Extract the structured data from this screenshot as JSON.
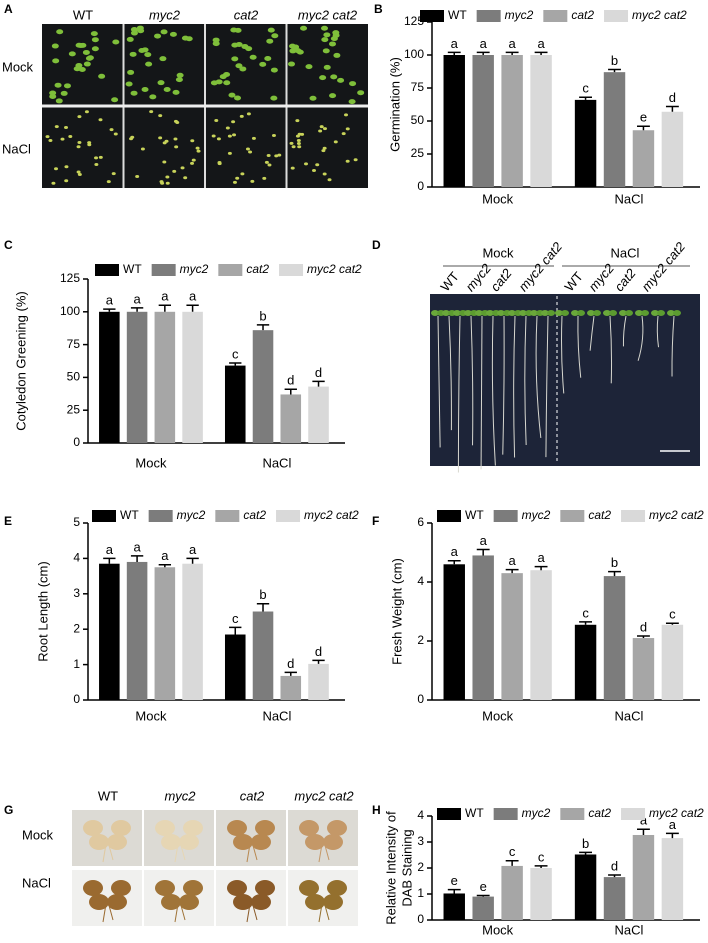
{
  "chart_data": [
    {
      "panel": "B",
      "type": "bar",
      "ylabel": "Germination (%)",
      "categories": [
        "Mock",
        "NaCl"
      ],
      "series": [
        {
          "name": "WT",
          "color": "#000000",
          "values": [
            100,
            66
          ],
          "errors": [
            2,
            2
          ],
          "significance": [
            "a",
            "c"
          ]
        },
        {
          "name": "myc2",
          "color": "#7c7c7c",
          "values": [
            100,
            87
          ],
          "errors": [
            2,
            2
          ],
          "significance": [
            "a",
            "b"
          ]
        },
        {
          "name": "cat2",
          "color": "#a6a6a6",
          "values": [
            100,
            43
          ],
          "errors": [
            2,
            3
          ],
          "significance": [
            "a",
            "e"
          ]
        },
        {
          "name": "myc2 cat2",
          "color": "#d9d9d9",
          "values": [
            100,
            57
          ],
          "errors": [
            2,
            4
          ],
          "significance": [
            "a",
            "d"
          ]
        }
      ],
      "ylim": [
        0,
        125
      ],
      "yticks": [
        0,
        25,
        50,
        75,
        100,
        125
      ]
    },
    {
      "panel": "C",
      "type": "bar",
      "ylabel": "Cotyledon Greening (%)",
      "categories": [
        "Mock",
        "NaCl"
      ],
      "series": [
        {
          "name": "WT",
          "color": "#000000",
          "values": [
            100,
            59
          ],
          "errors": [
            2,
            2
          ],
          "significance": [
            "a",
            "c"
          ]
        },
        {
          "name": "myc2",
          "color": "#7c7c7c",
          "values": [
            100,
            86
          ],
          "errors": [
            3,
            4
          ],
          "significance": [
            "a",
            "b"
          ]
        },
        {
          "name": "cat2",
          "color": "#a6a6a6",
          "values": [
            100,
            37
          ],
          "errors": [
            5,
            4
          ],
          "significance": [
            "a",
            "d"
          ]
        },
        {
          "name": "myc2 cat2",
          "color": "#d9d9d9",
          "values": [
            100,
            43
          ],
          "errors": [
            5,
            4
          ],
          "significance": [
            "a",
            "d"
          ]
        }
      ],
      "ylim": [
        0,
        125
      ],
      "yticks": [
        0,
        25,
        50,
        75,
        100,
        125
      ]
    },
    {
      "panel": "E",
      "type": "bar",
      "ylabel": "Root Length (cm)",
      "categories": [
        "Mock",
        "NaCl"
      ],
      "series": [
        {
          "name": "WT",
          "color": "#000000",
          "values": [
            3.85,
            1.85
          ],
          "errors": [
            0.15,
            0.2
          ],
          "significance": [
            "a",
            "c"
          ]
        },
        {
          "name": "myc2",
          "color": "#7c7c7c",
          "values": [
            3.9,
            2.5
          ],
          "errors": [
            0.17,
            0.22
          ],
          "significance": [
            "a",
            "b"
          ]
        },
        {
          "name": "cat2",
          "color": "#a6a6a6",
          "values": [
            3.75,
            0.68
          ],
          "errors": [
            0.07,
            0.1
          ],
          "significance": [
            "a",
            "d"
          ]
        },
        {
          "name": "myc2 cat2",
          "color": "#d9d9d9",
          "values": [
            3.85,
            1.02
          ],
          "errors": [
            0.15,
            0.1
          ],
          "significance": [
            "a",
            "d"
          ]
        }
      ],
      "ylim": [
        0,
        5
      ],
      "yticks": [
        0,
        1,
        2,
        3,
        4,
        5
      ]
    },
    {
      "panel": "F",
      "type": "bar",
      "ylabel": "Fresh Weight (cm)",
      "categories": [
        "Mock",
        "NaCl"
      ],
      "series": [
        {
          "name": "WT",
          "color": "#000000",
          "values": [
            4.6,
            2.55
          ],
          "errors": [
            0.12,
            0.1
          ],
          "significance": [
            "a",
            "c"
          ]
        },
        {
          "name": "myc2",
          "color": "#7c7c7c",
          "values": [
            4.9,
            4.2
          ],
          "errors": [
            0.2,
            0.15
          ],
          "significance": [
            "a",
            "b"
          ]
        },
        {
          "name": "cat2",
          "color": "#a6a6a6",
          "values": [
            4.3,
            2.1
          ],
          "errors": [
            0.12,
            0.07
          ],
          "significance": [
            "a",
            "d"
          ]
        },
        {
          "name": "myc2 cat2",
          "color": "#d9d9d9",
          "values": [
            4.4,
            2.55
          ],
          "errors": [
            0.12,
            0.05
          ],
          "significance": [
            "a",
            "c"
          ]
        }
      ],
      "ylim": [
        0,
        6
      ],
      "yticks": [
        0,
        2,
        4,
        6
      ]
    },
    {
      "panel": "H",
      "type": "bar",
      "ylabel": [
        "Relative Intensity of",
        "DAB Staining"
      ],
      "categories": [
        "Mock",
        "NaCl"
      ],
      "series": [
        {
          "name": "WT",
          "color": "#000000",
          "values": [
            1.02,
            2.52
          ],
          "errors": [
            0.15,
            0.08
          ],
          "significance": [
            "e",
            "b"
          ]
        },
        {
          "name": "myc2",
          "color": "#7c7c7c",
          "values": [
            0.9,
            1.65
          ],
          "errors": [
            0.04,
            0.08
          ],
          "significance": [
            "e",
            "d"
          ]
        },
        {
          "name": "cat2",
          "color": "#a6a6a6",
          "values": [
            2.08,
            3.27
          ],
          "errors": [
            0.2,
            0.22
          ],
          "significance": [
            "c",
            "a"
          ]
        },
        {
          "name": "myc2 cat2",
          "color": "#d9d9d9",
          "values": [
            2.0,
            3.15
          ],
          "errors": [
            0.08,
            0.18
          ],
          "significance": [
            "c",
            "a"
          ]
        }
      ],
      "ylim": [
        0,
        4
      ],
      "yticks": [
        0,
        1,
        2,
        3,
        4
      ]
    }
  ],
  "photo_panels": [
    {
      "panel": "A",
      "columns": [
        "WT",
        "myc2",
        "cat2",
        "myc2 cat2"
      ],
      "rows": [
        "Mock",
        "NaCl"
      ]
    },
    {
      "panel": "D",
      "conditions": [
        "Mock",
        "NaCl"
      ],
      "lanes": [
        "WT",
        "myc2",
        "cat2",
        "myc2 cat2",
        "WT",
        "myc2",
        "cat2",
        "myc2 cat2"
      ]
    },
    {
      "panel": "G",
      "columns": [
        "WT",
        "myc2",
        "cat2",
        "myc2 cat2"
      ],
      "rows": [
        "Mock",
        "NaCl"
      ]
    }
  ]
}
